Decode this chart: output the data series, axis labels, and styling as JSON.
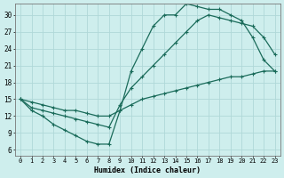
{
  "xlabel": "Humidex (Indice chaleur)",
  "background_color": "#ceeeed",
  "grid_color": "#b0d8d8",
  "line_color": "#1a6b5a",
  "xlim": [
    -0.5,
    23.5
  ],
  "ylim": [
    5,
    32
  ],
  "yticks": [
    6,
    9,
    12,
    15,
    18,
    21,
    24,
    27,
    30
  ],
  "xticks": [
    0,
    1,
    2,
    3,
    4,
    5,
    6,
    7,
    8,
    9,
    10,
    11,
    12,
    13,
    14,
    15,
    16,
    17,
    18,
    19,
    20,
    21,
    22,
    23
  ],
  "line1_x": [
    0,
    1,
    2,
    3,
    4,
    5,
    6,
    7,
    8,
    9,
    10,
    11,
    12,
    13,
    14,
    15,
    16,
    17,
    18,
    19,
    20,
    21,
    22,
    23
  ],
  "line1_y": [
    15,
    13,
    12,
    10.5,
    9.5,
    8.5,
    7.5,
    7,
    7,
    13,
    20,
    24,
    28,
    30,
    30,
    32,
    31.5,
    31,
    31,
    30,
    29,
    26,
    22,
    20
  ],
  "line2_x": [
    0,
    1,
    2,
    3,
    4,
    5,
    6,
    7,
    8,
    9,
    10,
    11,
    12,
    13,
    14,
    15,
    16,
    17,
    18,
    19,
    20,
    21,
    22,
    23
  ],
  "line2_y": [
    15,
    13.5,
    13,
    12.5,
    12,
    11.5,
    11,
    10.5,
    10,
    14,
    17,
    19,
    21,
    23,
    25,
    27,
    29,
    30,
    29.5,
    29,
    28.5,
    28,
    26,
    23
  ],
  "line3_x": [
    0,
    1,
    2,
    3,
    4,
    5,
    6,
    7,
    8,
    9,
    10,
    11,
    12,
    13,
    14,
    15,
    16,
    17,
    18,
    19,
    20,
    21,
    22,
    23
  ],
  "line3_y": [
    15,
    14.5,
    14,
    13.5,
    13,
    13,
    12.5,
    12,
    12,
    13,
    14,
    15,
    15.5,
    16,
    16.5,
    17,
    17.5,
    18,
    18.5,
    19,
    19,
    19.5,
    20,
    20
  ]
}
